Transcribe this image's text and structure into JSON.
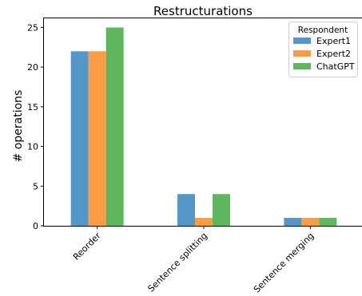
{
  "chart_data": {
    "type": "bar",
    "title": "Restructurations",
    "xlabel": "",
    "ylabel": "# operations",
    "categories": [
      "Reorder",
      "Sentence splitting",
      "Sentence merging"
    ],
    "series": [
      {
        "name": "Expert1",
        "values": [
          22,
          4,
          1
        ],
        "color": "#5596c8"
      },
      {
        "name": "Expert2",
        "values": [
          22,
          1,
          1
        ],
        "color": "#fb9d45"
      },
      {
        "name": "ChatGPT",
        "values": [
          25,
          4,
          1
        ],
        "color": "#5eb75c"
      }
    ],
    "ylim": [
      0,
      26.25
    ],
    "yticks": [
      "0",
      "5",
      "10",
      "15",
      "20",
      "25"
    ],
    "grid": false,
    "legend": {
      "title": "Respondent",
      "placement": "top-right"
    }
  }
}
